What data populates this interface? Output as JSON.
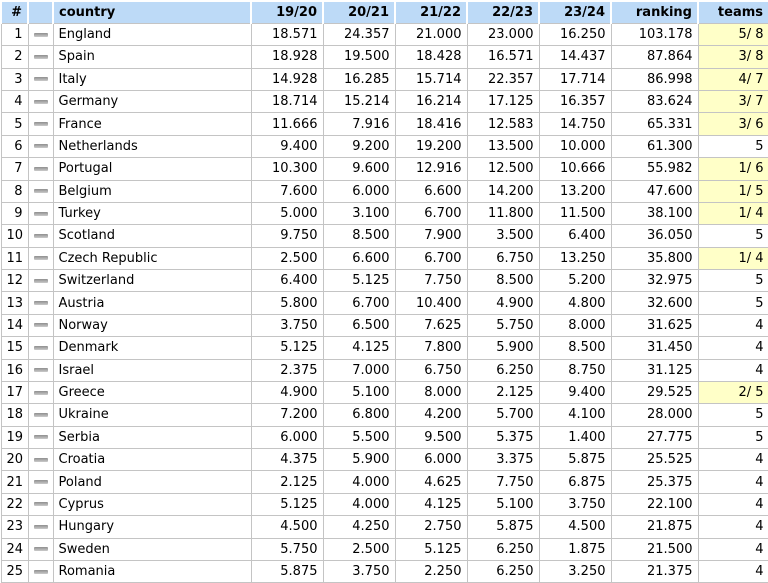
{
  "colors": {
    "header_bg": "#BDDAF7",
    "highlight_bg": "#FFFFC8",
    "grid_line": "#C4C4C4",
    "text": "#000000",
    "trend_icon_gray": "#8F8F8F"
  },
  "icons": {
    "trend_no_change": "gray-dash-icon"
  },
  "chart_data": {
    "type": "table",
    "columns": [
      "#",
      "",
      "country",
      "19/20",
      "20/21",
      "21/22",
      "22/23",
      "23/24",
      "ranking",
      "teams"
    ],
    "season_labels": [
      "19/20",
      "20/21",
      "21/22",
      "22/23",
      "23/24"
    ],
    "rows": [
      {
        "rank": "1",
        "trend": "no-change",
        "country": "England",
        "seasons": [
          "18.571",
          "24.357",
          "21.000",
          "23.000",
          "16.250"
        ],
        "ranking": "103.178",
        "teams": "5/ 8",
        "teams_highlight": true
      },
      {
        "rank": "2",
        "trend": "no-change",
        "country": "Spain",
        "seasons": [
          "18.928",
          "19.500",
          "18.428",
          "16.571",
          "14.437"
        ],
        "ranking": "87.864",
        "teams": "3/ 8",
        "teams_highlight": true
      },
      {
        "rank": "3",
        "trend": "no-change",
        "country": "Italy",
        "seasons": [
          "14.928",
          "16.285",
          "15.714",
          "22.357",
          "17.714"
        ],
        "ranking": "86.998",
        "teams": "4/ 7",
        "teams_highlight": true
      },
      {
        "rank": "4",
        "trend": "no-change",
        "country": "Germany",
        "seasons": [
          "18.714",
          "15.214",
          "16.214",
          "17.125",
          "16.357"
        ],
        "ranking": "83.624",
        "teams": "3/ 7",
        "teams_highlight": true
      },
      {
        "rank": "5",
        "trend": "no-change",
        "country": "France",
        "seasons": [
          "11.666",
          "7.916",
          "18.416",
          "12.583",
          "14.750"
        ],
        "ranking": "65.331",
        "teams": "3/ 6",
        "teams_highlight": true
      },
      {
        "rank": "6",
        "trend": "no-change",
        "country": "Netherlands",
        "seasons": [
          "9.400",
          "9.200",
          "19.200",
          "13.500",
          "10.000"
        ],
        "ranking": "61.300",
        "teams": "5",
        "teams_highlight": false
      },
      {
        "rank": "7",
        "trend": "no-change",
        "country": "Portugal",
        "seasons": [
          "10.300",
          "9.600",
          "12.916",
          "12.500",
          "10.666"
        ],
        "ranking": "55.982",
        "teams": "1/ 6",
        "teams_highlight": true
      },
      {
        "rank": "8",
        "trend": "no-change",
        "country": "Belgium",
        "seasons": [
          "7.600",
          "6.000",
          "6.600",
          "14.200",
          "13.200"
        ],
        "ranking": "47.600",
        "teams": "1/ 5",
        "teams_highlight": true
      },
      {
        "rank": "9",
        "trend": "no-change",
        "country": "Turkey",
        "seasons": [
          "5.000",
          "3.100",
          "6.700",
          "11.800",
          "11.500"
        ],
        "ranking": "38.100",
        "teams": "1/ 4",
        "teams_highlight": true
      },
      {
        "rank": "10",
        "trend": "no-change",
        "country": "Scotland",
        "seasons": [
          "9.750",
          "8.500",
          "7.900",
          "3.500",
          "6.400"
        ],
        "ranking": "36.050",
        "teams": "5",
        "teams_highlight": false
      },
      {
        "rank": "11",
        "trend": "no-change",
        "country": "Czech Republic",
        "seasons": [
          "2.500",
          "6.600",
          "6.700",
          "6.750",
          "13.250"
        ],
        "ranking": "35.800",
        "teams": "1/ 4",
        "teams_highlight": true
      },
      {
        "rank": "12",
        "trend": "no-change",
        "country": "Switzerland",
        "seasons": [
          "6.400",
          "5.125",
          "7.750",
          "8.500",
          "5.200"
        ],
        "ranking": "32.975",
        "teams": "5",
        "teams_highlight": false
      },
      {
        "rank": "13",
        "trend": "no-change",
        "country": "Austria",
        "seasons": [
          "5.800",
          "6.700",
          "10.400",
          "4.900",
          "4.800"
        ],
        "ranking": "32.600",
        "teams": "5",
        "teams_highlight": false
      },
      {
        "rank": "14",
        "trend": "no-change",
        "country": "Norway",
        "seasons": [
          "3.750",
          "6.500",
          "7.625",
          "5.750",
          "8.000"
        ],
        "ranking": "31.625",
        "teams": "4",
        "teams_highlight": false
      },
      {
        "rank": "15",
        "trend": "no-change",
        "country": "Denmark",
        "seasons": [
          "5.125",
          "4.125",
          "7.800",
          "5.900",
          "8.500"
        ],
        "ranking": "31.450",
        "teams": "4",
        "teams_highlight": false
      },
      {
        "rank": "16",
        "trend": "no-change",
        "country": "Israel",
        "seasons": [
          "2.375",
          "7.000",
          "6.750",
          "6.250",
          "8.750"
        ],
        "ranking": "31.125",
        "teams": "4",
        "teams_highlight": false
      },
      {
        "rank": "17",
        "trend": "no-change",
        "country": "Greece",
        "seasons": [
          "4.900",
          "5.100",
          "8.000",
          "2.125",
          "9.400"
        ],
        "ranking": "29.525",
        "teams": "2/ 5",
        "teams_highlight": true
      },
      {
        "rank": "18",
        "trend": "no-change",
        "country": "Ukraine",
        "seasons": [
          "7.200",
          "6.800",
          "4.200",
          "5.700",
          "4.100"
        ],
        "ranking": "28.000",
        "teams": "5",
        "teams_highlight": false
      },
      {
        "rank": "19",
        "trend": "no-change",
        "country": "Serbia",
        "seasons": [
          "6.000",
          "5.500",
          "9.500",
          "5.375",
          "1.400"
        ],
        "ranking": "27.775",
        "teams": "5",
        "teams_highlight": false
      },
      {
        "rank": "20",
        "trend": "no-change",
        "country": "Croatia",
        "seasons": [
          "4.375",
          "5.900",
          "6.000",
          "3.375",
          "5.875"
        ],
        "ranking": "25.525",
        "teams": "4",
        "teams_highlight": false
      },
      {
        "rank": "21",
        "trend": "no-change",
        "country": "Poland",
        "seasons": [
          "2.125",
          "4.000",
          "4.625",
          "7.750",
          "6.875"
        ],
        "ranking": "25.375",
        "teams": "4",
        "teams_highlight": false
      },
      {
        "rank": "22",
        "trend": "no-change",
        "country": "Cyprus",
        "seasons": [
          "5.125",
          "4.000",
          "4.125",
          "5.100",
          "3.750"
        ],
        "ranking": "22.100",
        "teams": "4",
        "teams_highlight": false
      },
      {
        "rank": "23",
        "trend": "no-change",
        "country": "Hungary",
        "seasons": [
          "4.500",
          "4.250",
          "2.750",
          "5.875",
          "4.500"
        ],
        "ranking": "21.875",
        "teams": "4",
        "teams_highlight": false
      },
      {
        "rank": "24",
        "trend": "no-change",
        "country": "Sweden",
        "seasons": [
          "5.750",
          "2.500",
          "5.125",
          "6.250",
          "1.875"
        ],
        "ranking": "21.500",
        "teams": "4",
        "teams_highlight": false
      },
      {
        "rank": "25",
        "trend": "no-change",
        "country": "Romania",
        "seasons": [
          "5.875",
          "3.750",
          "2.250",
          "6.250",
          "3.250"
        ],
        "ranking": "21.375",
        "teams": "4",
        "teams_highlight": false
      }
    ]
  }
}
